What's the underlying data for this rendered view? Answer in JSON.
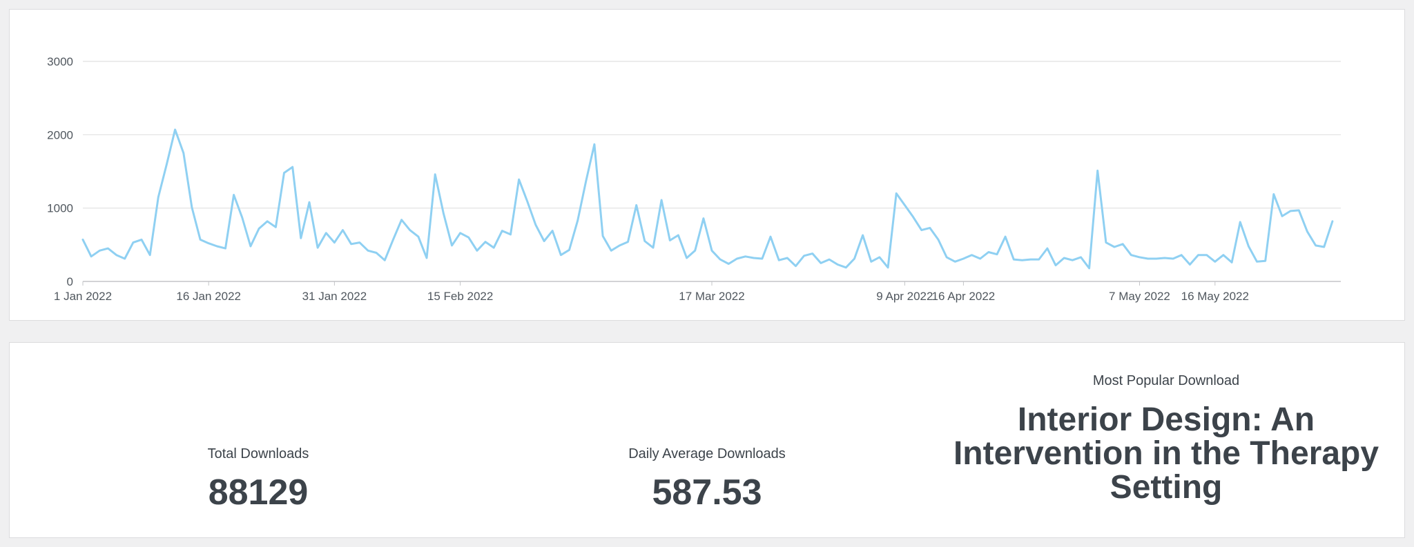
{
  "chart_data": {
    "type": "line",
    "ylim": [
      0,
      3000
    ],
    "y_ticks": [
      0,
      1000,
      2000,
      3000
    ],
    "x_range": [
      "2022-01-01",
      "2022-05-31"
    ],
    "x_tick_labels": [
      {
        "date": "2022-01-01",
        "label": "1 Jan 2022"
      },
      {
        "date": "2022-01-16",
        "label": "16 Jan 2022"
      },
      {
        "date": "2022-01-31",
        "label": "31 Jan 2022"
      },
      {
        "date": "2022-02-15",
        "label": "15 Feb 2022"
      },
      {
        "date": "2022-03-17",
        "label": "17 Mar 2022"
      },
      {
        "date": "2022-04-09",
        "label": "9 Apr 2022"
      },
      {
        "date": "2022-04-16",
        "label": "16 Apr 2022"
      },
      {
        "date": "2022-05-07",
        "label": "7 May 2022"
      },
      {
        "date": "2022-05-16",
        "label": "16 May 2022"
      }
    ],
    "grid": true,
    "line_color": "#8fd0f2",
    "series": [
      {
        "start_date": "2022-01-01",
        "values": [
          570,
          340,
          420,
          450,
          360,
          310,
          530,
          570,
          360,
          1150,
          1600,
          2070,
          1750,
          1010,
          570,
          520,
          480,
          450,
          1180,
          870,
          480,
          720,
          820,
          740,
          1480,
          1560,
          590,
          1080,
          460,
          660,
          530,
          700,
          510,
          530,
          420,
          390,
          290,
          570,
          840,
          700,
          610,
          320,
          1460,
          930,
          490,
          660,
          600,
          420,
          540,
          460,
          690,
          640,
          1390,
          1090,
          770,
          550,
          690,
          360,
          430,
          830,
          1370,
          1870,
          620,
          420,
          490,
          540,
          1040,
          550,
          460,
          1110,
          560,
          630,
          320,
          420,
          860,
          420,
          300,
          240,
          310,
          340,
          320,
          310,
          610,
          290,
          320,
          210,
          350,
          380,
          250,
          300,
          230,
          190,
          310,
          630,
          270,
          330,
          190,
          1200,
          1040,
          880,
          700,
          730,
          570,
          330,
          270,
          310,
          360,
          310,
          400,
          370,
          610,
          300,
          290,
          300,
          300,
          450,
          220,
          320,
          290,
          330,
          180,
          1510,
          530,
          470,
          510,
          360,
          330,
          310,
          310,
          320,
          310,
          360,
          230,
          360,
          360,
          270,
          360,
          260,
          810,
          480,
          270,
          280,
          1190,
          890,
          960,
          970,
          680,
          490,
          470,
          820
        ]
      }
    ]
  },
  "stats": {
    "total": {
      "label": "Total Downloads",
      "value": "88129"
    },
    "average": {
      "label": "Daily Average Downloads",
      "value": "587.53"
    },
    "popular": {
      "label": "Most Popular Download",
      "value": "Interior Design: An Intervention in the Therapy Setting"
    }
  }
}
